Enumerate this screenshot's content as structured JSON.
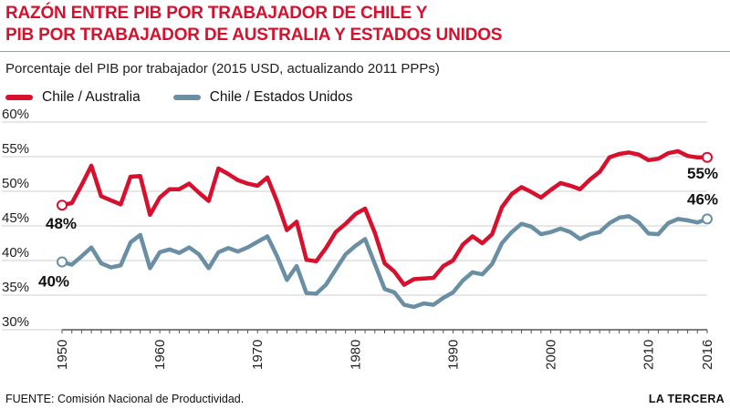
{
  "header": {
    "title_line1": "RAZÓN ENTRE PIB POR TRABAJADOR DE CHILE Y",
    "title_line2": "PIB POR TRABAJADOR DE AUSTRALIA Y ESTADOS UNIDOS",
    "subtitle": "Porcentaje del PIB por trabajador (2015 USD, actualizando 2011 PPPs)"
  },
  "footer": {
    "source": "FUENTE: Comisión Nacional de Productividad.",
    "brand": "LA TERCERA"
  },
  "colors": {
    "chile_australia": "#d6102d",
    "chile_usa": "#6a8fa5",
    "title": "#d6102d",
    "grid": "#cfcfcf"
  },
  "chart_data": {
    "type": "line",
    "title": "RAZÓN ENTRE PIB POR TRABAJADOR DE CHILE Y PIB POR TRABAJADOR DE AUSTRALIA Y ESTADOS UNIDOS",
    "subtitle": "Porcentaje del PIB por trabajador (2015 USD, actualizando 2011 PPPs)",
    "xlabel": "",
    "ylabel": "",
    "ylim": [
      30,
      60
    ],
    "xlim": [
      1950,
      2016
    ],
    "y_ticks": [
      30,
      35,
      40,
      45,
      50,
      55,
      60
    ],
    "y_tick_labels": [
      "30%",
      "35%",
      "40%",
      "45%",
      "50%",
      "55%",
      "60%"
    ],
    "x_ticks": [
      1950,
      1960,
      1970,
      1980,
      1990,
      2000,
      2010,
      2016
    ],
    "x_tick_labels": [
      "1950",
      "1960",
      "1970",
      "1980",
      "1990",
      "2000",
      "2010",
      "2016"
    ],
    "grid": "horizontal",
    "legend_position": "top-left",
    "x": [
      1950,
      1951,
      1952,
      1953,
      1954,
      1955,
      1956,
      1957,
      1958,
      1959,
      1960,
      1961,
      1962,
      1963,
      1964,
      1965,
      1966,
      1967,
      1968,
      1969,
      1970,
      1971,
      1972,
      1973,
      1974,
      1975,
      1976,
      1977,
      1978,
      1979,
      1980,
      1981,
      1982,
      1983,
      1984,
      1985,
      1986,
      1987,
      1988,
      1989,
      1990,
      1991,
      1992,
      1993,
      1994,
      1995,
      1996,
      1997,
      1998,
      1999,
      2000,
      2001,
      2002,
      2003,
      2004,
      2005,
      2006,
      2007,
      2008,
      2009,
      2010,
      2011,
      2012,
      2013,
      2014,
      2015,
      2016
    ],
    "series": [
      {
        "name": "Chile / Australia",
        "values": [
          48.0,
          48.3,
          50.9,
          53.7,
          49.3,
          48.7,
          48.1,
          52.1,
          52.2,
          46.6,
          49.1,
          50.3,
          50.3,
          51.1,
          49.8,
          48.6,
          53.3,
          52.5,
          51.6,
          51.1,
          50.8,
          52.0,
          48.5,
          44.4,
          45.6,
          40.1,
          39.9,
          41.8,
          44.1,
          45.3,
          46.7,
          47.5,
          44.0,
          39.6,
          38.4,
          36.5,
          37.3,
          37.4,
          37.5,
          39.2,
          40.0,
          42.3,
          43.5,
          42.5,
          43.8,
          47.7,
          49.6,
          50.6,
          49.9,
          49.1,
          50.2,
          51.2,
          50.8,
          50.3,
          51.7,
          52.8,
          54.9,
          55.4,
          55.6,
          55.3,
          54.5,
          54.7,
          55.5,
          55.8,
          55.1,
          54.9,
          54.9
        ]
      },
      {
        "name": "Chile / Estados Unidos",
        "values": [
          39.8,
          39.4,
          40.6,
          41.9,
          39.6,
          39.0,
          39.3,
          42.6,
          43.7,
          38.9,
          41.2,
          41.6,
          41.1,
          41.9,
          40.9,
          38.9,
          41.2,
          41.8,
          41.3,
          41.9,
          42.7,
          43.5,
          40.6,
          37.2,
          39.2,
          35.3,
          35.2,
          36.5,
          38.7,
          40.9,
          42.1,
          43.1,
          39.5,
          35.9,
          35.4,
          33.6,
          33.3,
          33.8,
          33.6,
          34.6,
          35.4,
          37.1,
          38.3,
          38.0,
          39.5,
          42.5,
          44.1,
          45.3,
          44.9,
          43.8,
          44.1,
          44.6,
          44.1,
          43.1,
          43.8,
          44.1,
          45.4,
          46.2,
          46.4,
          45.5,
          43.9,
          43.8,
          45.4,
          46.0,
          45.8,
          45.5,
          46.0
        ]
      }
    ],
    "annotations": [
      {
        "series": "Chile / Australia",
        "x": 1950,
        "label": "48%"
      },
      {
        "series": "Chile / Estados Unidos",
        "x": 1950,
        "label": "40%"
      },
      {
        "series": "Chile / Australia",
        "x": 2016,
        "label": "55%"
      },
      {
        "series": "Chile / Estados Unidos",
        "x": 2016,
        "label": "46%"
      }
    ]
  }
}
